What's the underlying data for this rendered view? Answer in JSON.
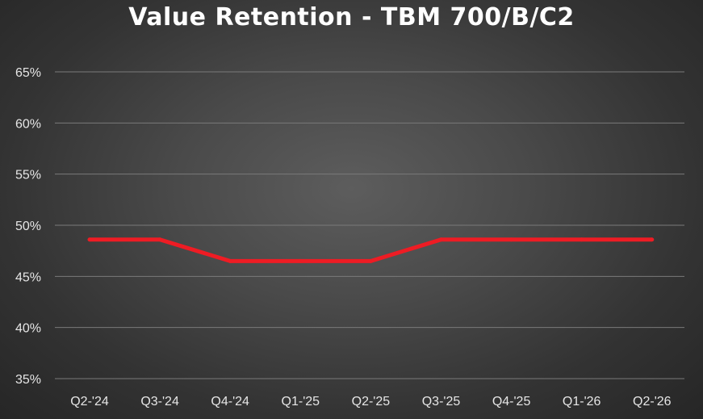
{
  "chart_data": {
    "type": "line",
    "title": "Value Retention - TBM 700/B/C2",
    "xlabel": "",
    "ylabel": "",
    "categories": [
      "Q2-'24",
      "Q3-'24",
      "Q4-'24",
      "Q1-'25",
      "Q2-'25",
      "Q3-'25",
      "Q4-'25",
      "Q1-'26",
      "Q2-'26"
    ],
    "series": [
      {
        "values": [
          48.6,
          48.6,
          46.5,
          46.5,
          46.5,
          48.6,
          48.6,
          48.6,
          48.6
        ],
        "color": "#ee1c24"
      }
    ],
    "ylim": [
      35,
      65
    ],
    "yticks": [
      "35%",
      "40%",
      "45%",
      "50%",
      "55%",
      "60%",
      "65%"
    ],
    "grid": true,
    "legend": "none",
    "colors": {
      "gridline": "#7a7a7a",
      "line": "#ee1c24",
      "text": "#e6e6e6"
    }
  }
}
